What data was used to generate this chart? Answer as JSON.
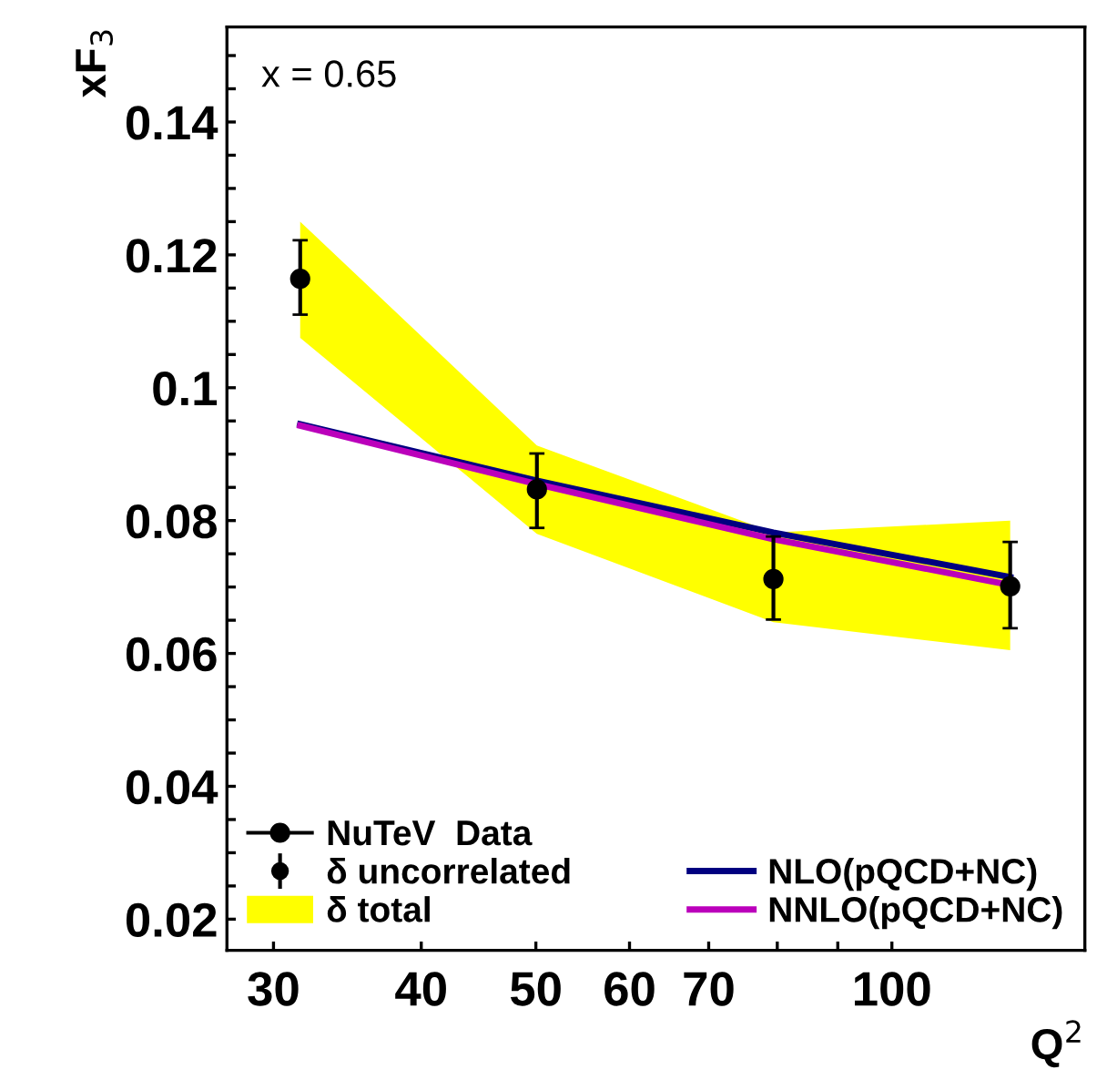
{
  "chart_data": {
    "type": "scatter",
    "xlabel": "Q$^{2}$",
    "ylabel": "xF$_{3}$",
    "annotations": [
      "x = 0.65",
      "δ uncorrelated",
      "δ total"
    ],
    "x": [
      31.6,
      50.1,
      79.4,
      125.9
    ],
    "series": [
      {
        "name": "NLO(pQCD+NC)",
        "type": "line",
        "color": "#000080",
        "marker": "none",
        "values": [
          0.0945,
          0.086,
          0.0782,
          0.0715
        ]
      },
      {
        "name": "NNLO(pQCD+NC)",
        "type": "line",
        "color": "#bb00bb",
        "marker": "none",
        "values": [
          0.0943,
          0.0855,
          0.0772,
          0.0703
        ]
      },
      {
        "name": "NuTeV  Data",
        "color": "#000000",
        "marker": "circle",
        "values": [
          0.1164,
          0.0847,
          0.0712,
          0.0701
        ],
        "errors": [
          [
            0.111,
            0.1222
          ],
          [
            0.0789,
            0.0901
          ],
          [
            0.0651,
            0.0776
          ],
          [
            0.0638,
            0.0768
          ]
        ],
        "lower": [
          0.1075,
          0.078,
          0.0647,
          0.0605
        ],
        "upper": [
          0.125,
          0.0913,
          0.0782,
          0.08
        ]
      }
    ],
    "log": "x",
    "xlim": [
      27.4,
      145.6
    ],
    "xticks": [
      30,
      40,
      50,
      60,
      70,
      {
        "value": 80,
        "label": null
      },
      {
        "value": 90,
        "label": null
      },
      100
    ],
    "ylim": [
      0.0153,
      0.1543
    ],
    "yticks": [
      {
        "value": 0.02,
        "label": "0.02"
      },
      {
        "value": 0.025,
        "label": null
      },
      {
        "value": 0.03,
        "label": null
      },
      {
        "value": 0.035,
        "label": null
      },
      {
        "value": 0.04,
        "label": "0.04"
      },
      {
        "value": 0.045,
        "label": null
      },
      {
        "value": 0.05,
        "label": null
      },
      {
        "value": 0.055,
        "label": null
      },
      {
        "value": 0.06,
        "label": "0.06"
      },
      {
        "value": 0.065,
        "label": null
      },
      {
        "value": 0.07,
        "label": null
      },
      {
        "value": 0.075,
        "label": null
      },
      {
        "value": 0.08,
        "label": "0.08"
      },
      {
        "value": 0.085,
        "label": null
      },
      {
        "value": 0.09,
        "label": null
      },
      {
        "value": 0.095,
        "label": null
      },
      {
        "value": 0.1,
        "label": "0.1"
      },
      {
        "value": 0.105,
        "label": null
      },
      {
        "value": 0.11,
        "label": null
      },
      {
        "value": 0.115,
        "label": null
      },
      {
        "value": 0.12,
        "label": "0.12"
      },
      {
        "value": 0.125,
        "label": null
      },
      {
        "value": 0.13,
        "label": null
      },
      {
        "value": 0.135,
        "label": null
      },
      {
        "value": 0.14,
        "label": "0.14"
      },
      {
        "value": 0.145,
        "label": null
      },
      {
        "value": 0.15,
        "label": null
      }
    ],
    "grid": false,
    "legend": "bottom"
  }
}
